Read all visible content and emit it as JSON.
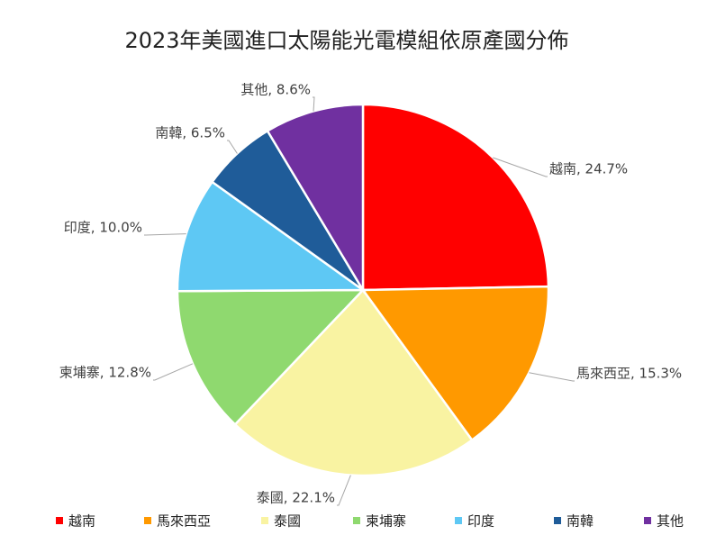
{
  "chart_data": {
    "type": "pie",
    "title": "2023年美國進口太陽能光電模組依原產國分佈",
    "categories": [
      "越南",
      "馬來西亞",
      "泰國",
      "柬埔寨",
      "印度",
      "南韓",
      "其他"
    ],
    "values": [
      24.7,
      15.3,
      22.1,
      12.8,
      10,
      6.5,
      8.6
    ],
    "value_labels": [
      "越南, 24.7%",
      "馬來西亞, 15.3%",
      "泰國, 22.1%",
      "柬埔寨, 12.8%",
      "印度, 10.0%",
      "南韓, 6.5%",
      "其他, 8.6%"
    ],
    "colors": [
      "#ff0000",
      "#ff9900",
      "#f9f3a2",
      "#8fd96f",
      "#5ec8f4",
      "#1f5c99",
      "#7030a0"
    ],
    "legend": "bottom"
  }
}
